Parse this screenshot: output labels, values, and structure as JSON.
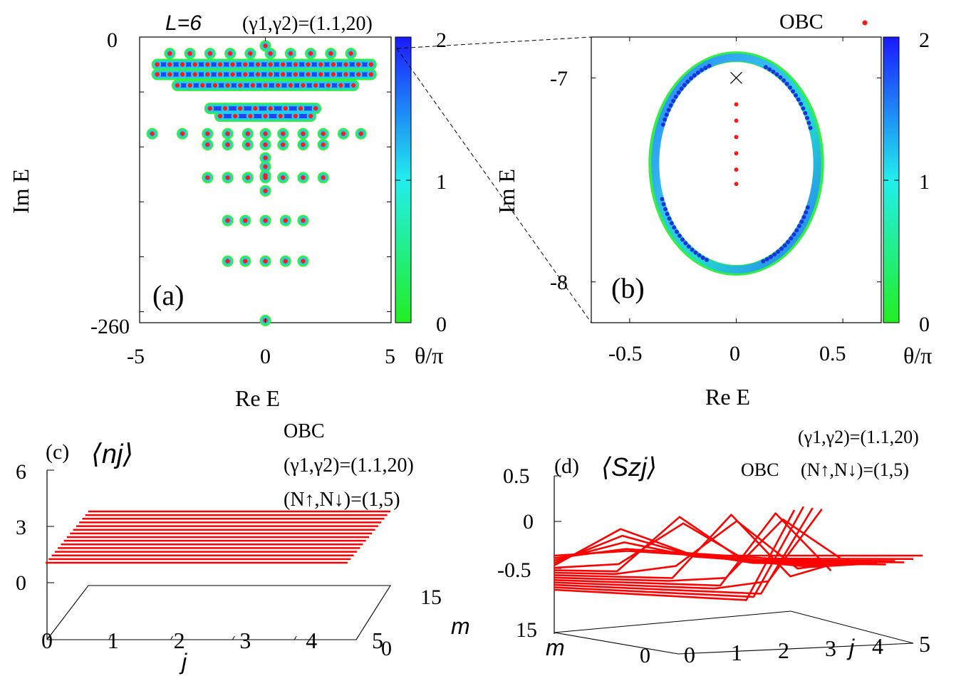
{
  "colors": {
    "points": "#ff1a1a",
    "lines": "#ff0000",
    "cb_low": "#22ee22",
    "cb_mid": "#22eeee",
    "cb_high": "#1a1aff"
  },
  "panel_a": {
    "label": "(a)",
    "title_L": "L=6",
    "title_gamma": "(γ1,γ2)=(1.1,20)",
    "xlabel": "Re E",
    "ylabel": "Im E",
    "xticks": [
      "-5",
      "0",
      "5"
    ],
    "yticks": [
      "0",
      "-260"
    ],
    "cb_ticks": [
      "2",
      "1",
      "0"
    ],
    "cb_label": "θ/π"
  },
  "panel_b": {
    "label": "(b)",
    "legend": "OBC",
    "xlabel": "Re E",
    "ylabel": "Im E",
    "xticks": [
      "-0.5",
      "0",
      "0.5"
    ],
    "yticks": [
      "-7",
      "-8"
    ],
    "cb_ticks": [
      "2",
      "1",
      "0"
    ],
    "cb_label": "θ/π"
  },
  "panel_c": {
    "label": "(c)",
    "quantity": "⟨nj⟩",
    "bc": "OBC",
    "gamma": "(γ1,γ2)=(1.1,20)",
    "N": "(N↑,N↓)=(1,5)",
    "zticks": [
      "6",
      "3",
      "0"
    ],
    "jticks": [
      "0",
      "1",
      "2",
      "3",
      "4",
      "5"
    ],
    "mticks": [
      "15",
      "0"
    ],
    "jlabel": "j",
    "mlabel": "m"
  },
  "panel_d": {
    "label": "(d)",
    "quantity": "⟨Szj⟩",
    "bc": "OBC",
    "gamma": "(γ1,γ2)=(1.1,20)",
    "N": "(N↑,N↓)=(1,5)",
    "zticks": [
      "0.5",
      "0",
      "-0.5"
    ],
    "jticks": [
      "0",
      "1",
      "2",
      "3",
      "4",
      "5"
    ],
    "mticks": [
      "15",
      "0"
    ],
    "jlabel": "j",
    "mlabel": "m"
  },
  "chart_data": [
    {
      "type": "scatter",
      "panel": "a",
      "xlim": [
        -5,
        5
      ],
      "ylim": [
        -260,
        0
      ],
      "color_scale": {
        "label": "θ/π",
        "range": [
          0,
          2
        ]
      },
      "rows": [
        {
          "y": -8,
          "x": [
            0
          ]
        },
        {
          "y": -15,
          "x": [
            -3.8,
            -3,
            -2.2,
            -1.4,
            -0.6,
            0.2,
            1,
            1.8,
            2.6,
            3.4
          ]
        },
        {
          "y": -25,
          "x": [
            -4.3,
            -3.8,
            -3.3,
            -2.8,
            -2.3,
            -1.8,
            -1.3,
            -0.8,
            -0.3,
            0.2,
            0.7,
            1.2,
            1.7,
            2.2,
            2.7,
            3.2,
            3.7,
            4.2
          ]
        },
        {
          "y": -34,
          "x": [
            -4.3,
            -3.8,
            -3.3,
            -2.8,
            -2.3,
            -1.8,
            -1.3,
            -0.8,
            -0.3,
            0.2,
            0.7,
            1.2,
            1.7,
            2.2,
            2.7,
            3.2,
            3.7,
            4.2
          ]
        },
        {
          "y": -44,
          "x": [
            -3.5,
            -3,
            -2.5,
            -2,
            -1.5,
            -1,
            -0.5,
            0,
            0.5,
            1,
            1.5,
            2,
            2.5,
            3,
            3.5
          ]
        },
        {
          "y": -65,
          "x": [
            -2.2,
            -1.6,
            -1,
            -0.4,
            0.2,
            0.8,
            1.4,
            2
          ]
        },
        {
          "y": -72,
          "x": [
            -1.8,
            -1.2,
            -0.6,
            0,
            0.6,
            1.2,
            1.8
          ]
        },
        {
          "y": -88,
          "x": [
            -4.5,
            -3.3,
            -2.3,
            -1.5,
            -0.7,
            0,
            0.7,
            1.5,
            2.3,
            3.1,
            3.8
          ]
        },
        {
          "y": -98,
          "x": [
            -2.3,
            -1.5,
            -0.7,
            0,
            0.7,
            1.5,
            2.3
          ]
        },
        {
          "y": -110,
          "x": [
            0
          ]
        },
        {
          "y": -118,
          "x": [
            0
          ]
        },
        {
          "y": -126,
          "x": [
            0
          ]
        },
        {
          "y": -128,
          "x": [
            -2.3,
            -1.5,
            -0.7,
            0,
            0.7,
            1.5,
            2.3
          ]
        },
        {
          "y": -140,
          "x": [
            0
          ]
        },
        {
          "y": -167,
          "x": [
            -1.5,
            -0.8,
            0,
            0.8,
            1.5
          ]
        },
        {
          "y": -204,
          "x": [
            -1.5,
            -0.8,
            0,
            0.8,
            1.5
          ]
        },
        {
          "y": -258,
          "x": [
            0
          ]
        }
      ]
    },
    {
      "type": "scatter",
      "panel": "b",
      "xlim": [
        -0.68,
        0.68
      ],
      "ylim": [
        -8.2,
        -6.8
      ],
      "legend": "OBC",
      "legend_position": "top-right",
      "pbc_loop": {
        "center": [
          0,
          -7.42
        ],
        "radius_x": 0.38,
        "radius_y": 0.52
      },
      "obc_points": {
        "x": [
          0,
          0,
          0,
          0,
          0,
          0
        ],
        "y": [
          -7.13,
          -7.21,
          -7.29,
          -7.37,
          -7.45,
          -7.52
        ]
      },
      "marker_x": {
        "x": 0,
        "y": -7.0
      },
      "color_scale": {
        "label": "θ/π",
        "range": [
          0,
          2
        ]
      }
    },
    {
      "type": "line",
      "panel": "c",
      "quantity": "⟨nj⟩",
      "j": [
        0,
        1,
        2,
        3,
        4,
        5
      ],
      "m_range": [
        0,
        15
      ],
      "zlim": [
        0,
        6
      ],
      "series_value": 1
    },
    {
      "type": "line",
      "panel": "d",
      "quantity": "⟨Szj⟩",
      "j": [
        0,
        1,
        2,
        3,
        4,
        5
      ],
      "m_range": [
        0,
        15
      ],
      "zlim": [
        -0.5,
        0.5
      ],
      "series": [
        {
          "values": [
            -0.5,
            -0.5,
            -0.5,
            -0.5,
            -0.5,
            0.5
          ]
        },
        {
          "values": [
            -0.5,
            -0.5,
            -0.5,
            -0.5,
            -0.5,
            0.5
          ]
        },
        {
          "values": [
            -0.5,
            -0.5,
            -0.5,
            -0.5,
            -0.5,
            0.45
          ]
        },
        {
          "values": [
            -0.5,
            -0.5,
            -0.5,
            -0.5,
            -0.4,
            0.4
          ]
        },
        {
          "values": [
            -0.5,
            -0.5,
            -0.5,
            -0.5,
            0.3,
            -0.3
          ]
        },
        {
          "values": [
            -0.5,
            -0.5,
            -0.5,
            -0.45,
            0.2,
            -0.2
          ]
        },
        {
          "values": [
            -0.5,
            -0.5,
            -0.5,
            0.2,
            -0.45,
            -0.25
          ]
        },
        {
          "values": [
            -0.5,
            -0.5,
            -0.4,
            0.1,
            -0.4,
            -0.3
          ]
        },
        {
          "values": [
            -0.5,
            -0.5,
            0.1,
            -0.35,
            -0.4,
            -0.35
          ]
        },
        {
          "values": [
            -0.5,
            -0.45,
            0,
            -0.4,
            -0.45,
            -0.4
          ]
        },
        {
          "values": [
            -0.5,
            -0.1,
            -0.35,
            -0.45,
            -0.45,
            -0.45
          ]
        },
        {
          "values": [
            -0.5,
            -0.2,
            -0.4,
            -0.45,
            -0.45,
            -0.45
          ]
        },
        {
          "values": [
            -0.5,
            -0.3,
            -0.45,
            -0.5,
            -0.5,
            -0.5
          ]
        },
        {
          "values": [
            -0.5,
            -0.4,
            -0.45,
            -0.5,
            -0.5,
            -0.5
          ]
        },
        {
          "values": [
            -0.5,
            -0.45,
            -0.5,
            -0.5,
            -0.5,
            -0.5
          ]
        }
      ]
    }
  ]
}
